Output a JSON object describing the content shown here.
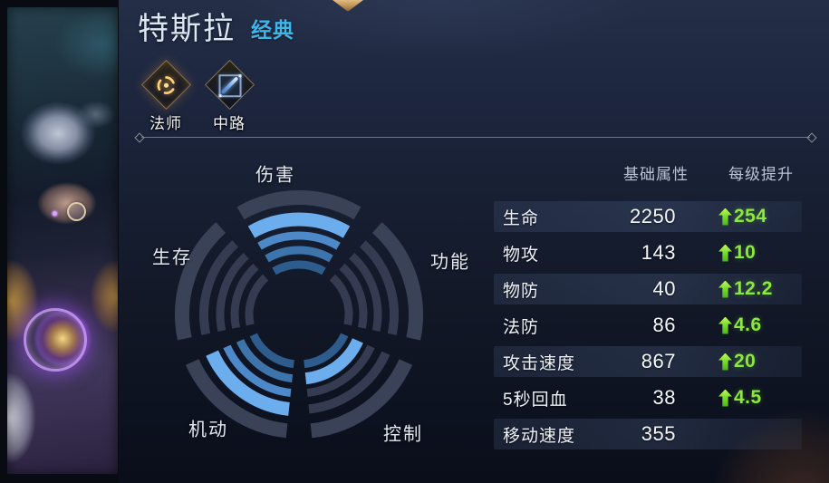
{
  "hero": {
    "name": "特斯拉",
    "tag": "经典",
    "roles": [
      {
        "label": "法师",
        "icon": "mage-swirl-icon"
      },
      {
        "label": "中路",
        "icon": "mid-lane-icon"
      }
    ]
  },
  "chart_data": {
    "type": "radial-fan",
    "max_level": 4,
    "sectors": [
      {
        "label": "伤害",
        "value": 4
      },
      {
        "label": "功能",
        "value": 0
      },
      {
        "label": "控制",
        "value": 2
      },
      {
        "label": "机动",
        "value": 4
      },
      {
        "label": "生存",
        "value": 0
      }
    ],
    "layout": {
      "rim_color": "#3a4257",
      "empty_color": "#353c51",
      "cap_color": "#6cadee",
      "filled_colors": [
        "#2e5c8c",
        "#3e74ac",
        "#4d88c8"
      ]
    }
  },
  "stats": {
    "headers": {
      "base": "基础属性",
      "growth": "每级提升"
    },
    "rows": [
      {
        "label": "生命",
        "base": "2250",
        "growth": "254"
      },
      {
        "label": "物攻",
        "base": "143",
        "growth": "10"
      },
      {
        "label": "物防",
        "base": "40",
        "growth": "12.2"
      },
      {
        "label": "法防",
        "base": "86",
        "growth": "4.6"
      },
      {
        "label": "攻击速度",
        "base": "867",
        "growth": "20"
      },
      {
        "label": "5秒回血",
        "base": "38",
        "growth": "4.5"
      },
      {
        "label": "移动速度",
        "base": "355",
        "growth": null
      }
    ]
  },
  "colors": {
    "accent_green": "#84e62f",
    "tag_blue": "#3db5e9",
    "fill_blue": "#6cadee",
    "gold": "#c9a05e"
  }
}
